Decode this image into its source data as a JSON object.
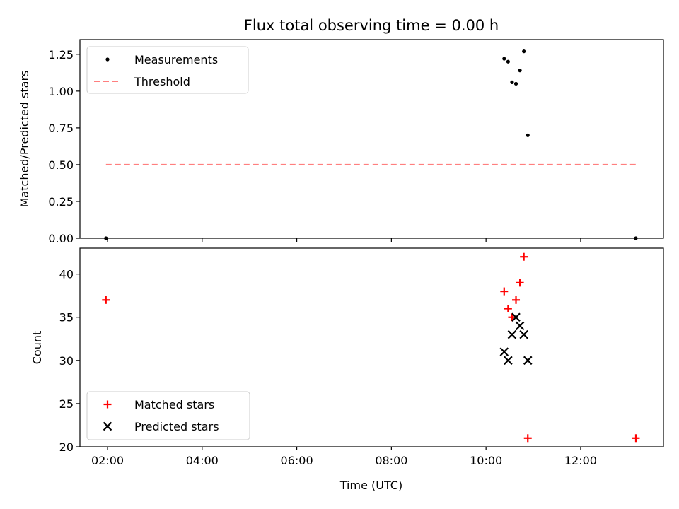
{
  "chart_data": [
    {
      "type": "scatter",
      "title": "Flux total observing time = 0.00 h",
      "xlabel": "",
      "ylabel": "Matched/Predicted stars",
      "xlim": [
        "01:25",
        "13:45"
      ],
      "ylim": [
        0,
        1.35
      ],
      "yticks": [
        0.0,
        0.25,
        0.5,
        0.75,
        1.0,
        1.25
      ],
      "ytick_labels": [
        "0.00",
        "0.25",
        "0.50",
        "0.75",
        "1.00",
        "1.25"
      ],
      "xticks": [
        "02:00",
        "04:00",
        "06:00",
        "08:00",
        "10:00",
        "12:00"
      ],
      "show_xtick_labels": false,
      "grid": false,
      "legend_position": "top-left",
      "series": [
        {
          "name": "Measurements",
          "kind": "points",
          "color": "#000000",
          "x": [
            "01:58",
            "10:23",
            "10:28",
            "10:33",
            "10:38",
            "10:43",
            "10:48",
            "10:53",
            "13:10"
          ],
          "y": [
            0.0,
            1.22,
            1.2,
            1.06,
            1.05,
            1.14,
            1.27,
            0.7,
            0.0
          ]
        },
        {
          "name": "Threshold",
          "kind": "dashed-line",
          "color": "#ff7f7f",
          "x": [
            "01:58",
            "13:10"
          ],
          "y": [
            0.5,
            0.5
          ]
        }
      ]
    },
    {
      "type": "scatter",
      "title": "",
      "xlabel": "Time (UTC)",
      "ylabel": "Count",
      "xlim": [
        "01:25",
        "13:45"
      ],
      "ylim": [
        20,
        43
      ],
      "yticks": [
        20,
        25,
        30,
        35,
        40
      ],
      "ytick_labels": [
        "20",
        "25",
        "30",
        "35",
        "40"
      ],
      "xticks": [
        "02:00",
        "04:00",
        "06:00",
        "08:00",
        "10:00",
        "12:00"
      ],
      "show_xtick_labels": true,
      "grid": false,
      "legend_position": "bottom-left",
      "series": [
        {
          "name": "Matched stars",
          "kind": "plus-markers",
          "color": "#ff0000",
          "x": [
            "01:58",
            "10:23",
            "10:28",
            "10:33",
            "10:38",
            "10:43",
            "10:48",
            "10:53",
            "13:10"
          ],
          "y": [
            37,
            38,
            36,
            35,
            37,
            39,
            42,
            21,
            21
          ]
        },
        {
          "name": "Predicted stars",
          "kind": "x-markers",
          "color": "#000000",
          "x": [
            "10:23",
            "10:28",
            "10:33",
            "10:38",
            "10:43",
            "10:48",
            "10:53"
          ],
          "y": [
            31,
            30,
            33,
            35,
            34,
            33,
            30
          ]
        }
      ]
    }
  ]
}
